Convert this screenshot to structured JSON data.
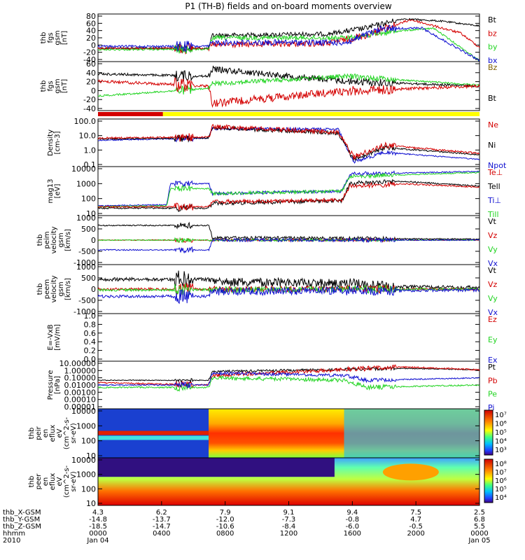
{
  "title": "P1 (TH-B) fields and on-board moments overview",
  "colors": {
    "black": "#000000",
    "red": "#d40000",
    "green": "#22d422",
    "blue": "#1010d0",
    "yellow": "#ffff00"
  },
  "chart_data": {
    "type": "line",
    "panels": [
      {
        "id": "fgs-gsm",
        "ylabel": [
          "thb",
          "fgs",
          "gsm",
          "[nT]"
        ],
        "yticks": [
          "80",
          "60",
          "40",
          "20",
          "0",
          "-20",
          "-40"
        ],
        "legend": [
          {
            "t": "Bt",
            "c": "black"
          },
          {
            "t": "bz",
            "c": "red"
          },
          {
            "t": "by",
            "c": "green"
          },
          {
            "t": "bx",
            "c": "blue"
          }
        ]
      },
      {
        "id": "fgs-fac",
        "ylabel": [
          "thb",
          "fgs",
          "gsm",
          "[nT]"
        ],
        "yticks": [
          "60",
          "40",
          "20",
          "0",
          "-20",
          "-40"
        ],
        "legend": [
          {
            "t": "Bz",
            "c": "#806000"
          },
          {
            "t": "Bt",
            "c": "black"
          }
        ]
      },
      {
        "id": "density",
        "ylabel": [
          "Density",
          "[cm-3]"
        ],
        "yticks": [
          "100.0",
          "10.0",
          "1.0",
          "0.1"
        ],
        "legend": [
          {
            "t": "Ne",
            "c": "red"
          },
          {
            "t": "Ni",
            "c": "black"
          },
          {
            "t": "Npot",
            "c": "blue"
          }
        ]
      },
      {
        "id": "temperature",
        "ylabel": [
          "mag13",
          "[eV]"
        ],
        "yticks": [
          "10000",
          "1000",
          "100",
          "10"
        ],
        "legend": [
          {
            "t": "Te⊥",
            "c": "red"
          },
          {
            "t": "Tell",
            "c": "black"
          },
          {
            "t": "Ti⊥",
            "c": "blue"
          },
          {
            "t": "Till",
            "c": "green"
          }
        ]
      },
      {
        "id": "ion-velocity",
        "ylabel": [
          "thb",
          "peim",
          "velocity",
          "gsm",
          "[km/s]"
        ],
        "yticks": [
          "1000",
          "500",
          "0",
          "-500",
          "-1000"
        ],
        "legend": [
          {
            "t": "Vt",
            "c": "black"
          },
          {
            "t": "Vz",
            "c": "red"
          },
          {
            "t": "Vy",
            "c": "green"
          },
          {
            "t": "Vx",
            "c": "blue"
          }
        ]
      },
      {
        "id": "electron-velocity",
        "ylabel": [
          "thb",
          "peem",
          "velocity",
          "gsm",
          "[km/s]"
        ],
        "yticks": [
          "1000",
          "500",
          "0",
          "-500",
          "-1000"
        ],
        "legend": [
          {
            "t": "Vt",
            "c": "black"
          },
          {
            "t": "Vz",
            "c": "red"
          },
          {
            "t": "Vy",
            "c": "green"
          },
          {
            "t": "Vx",
            "c": "blue"
          }
        ]
      },
      {
        "id": "efield",
        "ylabel": [
          "E=-VxB",
          "[mV/m]"
        ],
        "yticks": [
          "1.0",
          "0.8",
          "0.6",
          "0.4",
          "0.2",
          "0.0"
        ],
        "legend": [
          {
            "t": "Ez",
            "c": "red"
          },
          {
            "t": "Ey",
            "c": "green"
          },
          {
            "t": "Ex",
            "c": "blue"
          }
        ]
      },
      {
        "id": "pressure",
        "ylabel": [
          "Pressure",
          "[nPa]"
        ],
        "yticks": [
          "10.00000",
          "1.00000",
          "0.10000",
          "0.01000",
          "0.00100",
          "0.00010",
          "0.00001"
        ],
        "legend": [
          {
            "t": "Pt",
            "c": "black"
          },
          {
            "t": "Pb",
            "c": "red"
          },
          {
            "t": "Pe",
            "c": "green"
          },
          {
            "t": "Pi",
            "c": "blue"
          }
        ]
      },
      {
        "id": "ion-spectrogram",
        "ylabel": [
          "thb",
          "peir",
          "en",
          "eflux",
          "eV",
          "(cm^2-s-",
          "sr-eV)"
        ],
        "yticks": [
          "10000",
          "1000",
          "100",
          "10"
        ],
        "colorbar": [
          "10⁷",
          "10⁶",
          "10⁵",
          "10⁴",
          "10³"
        ]
      },
      {
        "id": "electron-spectrogram",
        "ylabel": [
          "thb",
          "peer",
          "en",
          "eflux",
          "eV",
          "(cm^2-s-",
          "sr-eV)"
        ],
        "yticks": [
          "10000",
          "1000",
          "100",
          "10"
        ],
        "colorbar": [
          "10⁸",
          "10⁷",
          "10⁶",
          "10⁵",
          "10⁴"
        ]
      }
    ],
    "xaxis": {
      "row_labels": [
        "thb_X-GSM",
        "thb_Y-GSM",
        "thb_Z-GSM",
        "hhmm",
        "2010"
      ],
      "ticks": [
        {
          "vals": [
            "4.3",
            "-14.8",
            "-18.5",
            "0000",
            "Jan 04"
          ]
        },
        {
          "vals": [
            "6.2",
            "-13.7",
            "-14.7",
            "0400",
            ""
          ]
        },
        {
          "vals": [
            "7.9",
            "-12.0",
            "-10.6",
            "0800",
            ""
          ]
        },
        {
          "vals": [
            "9.1",
            "-7.3",
            "-8.4",
            "1200",
            ""
          ]
        },
        {
          "vals": [
            "9.4",
            "-0.8",
            "-6.0",
            "1600",
            ""
          ]
        },
        {
          "vals": [
            "7.5",
            "4.7",
            "-0.5",
            "2000",
            ""
          ]
        },
        {
          "vals": [
            "2.5",
            "6.8",
            "5.5",
            "0000",
            "Jan 05"
          ]
        }
      ]
    }
  }
}
